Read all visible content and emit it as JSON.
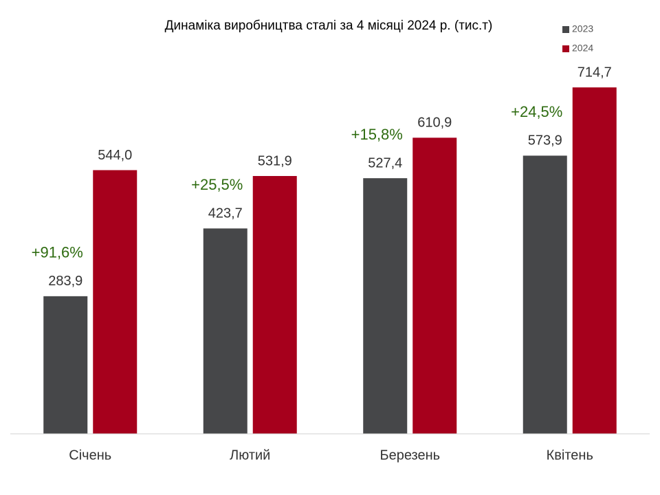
{
  "chart_data": {
    "type": "bar",
    "title": "Динаміка виробництва сталі за 4 місяці 2024 р. (тис.т)",
    "categories": [
      "Січень",
      "Лютий",
      "Березень",
      "Квітень"
    ],
    "series": [
      {
        "name": "2023",
        "color": "#464749",
        "values": [
          283.9,
          423.7,
          527.4,
          573.9
        ],
        "value_labels": [
          "283,9",
          "423,7",
          "527,4",
          "573,9"
        ]
      },
      {
        "name": "2024",
        "color": "#a6001c",
        "values": [
          544.0,
          531.9,
          610.9,
          714.7
        ],
        "value_labels": [
          "544,0",
          "531,9",
          "610,9",
          "714,7"
        ]
      }
    ],
    "annotations": [
      "+91,6%",
      "+25,5%",
      "+15,8%",
      "+24,5%"
    ],
    "ylim": [
      0,
      800
    ]
  }
}
